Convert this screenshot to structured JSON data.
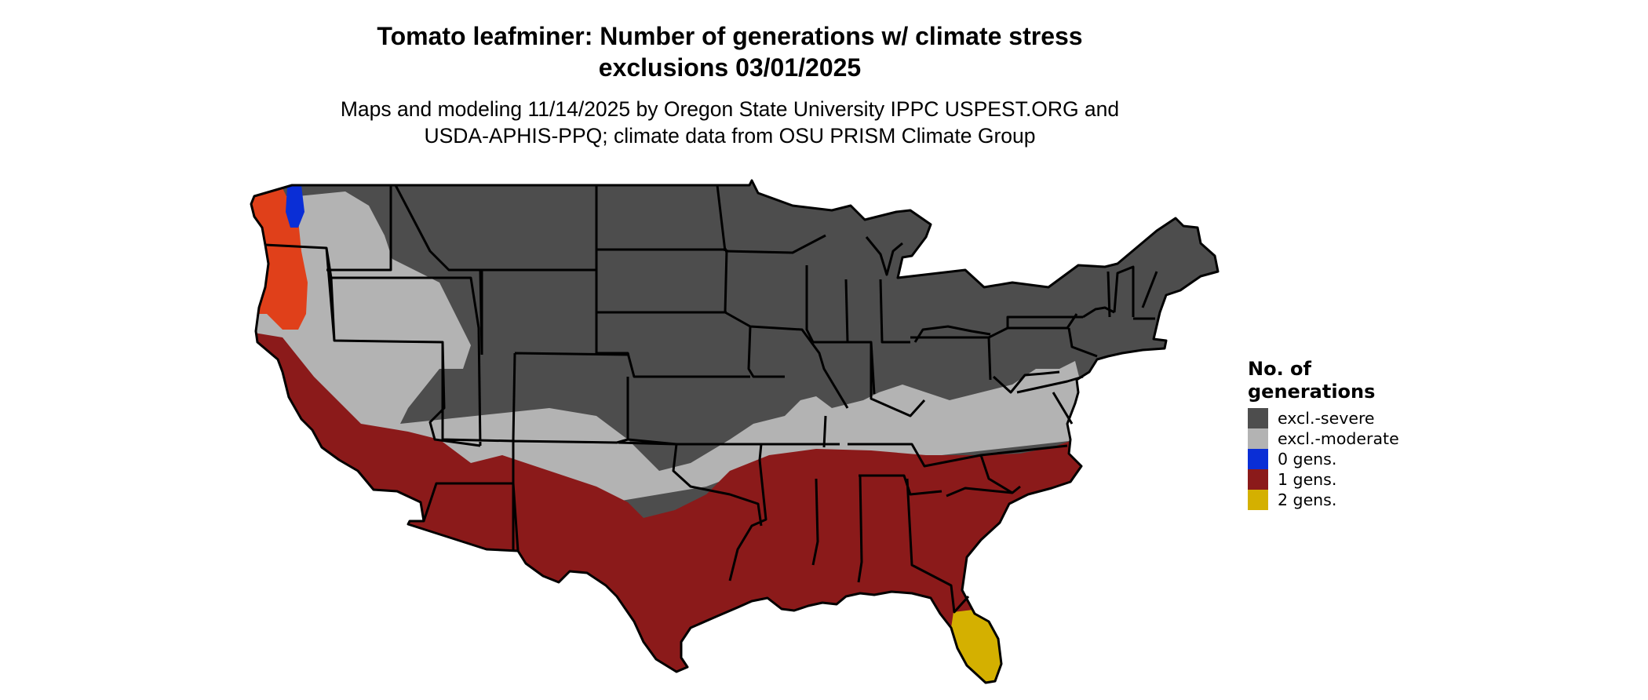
{
  "title_line1": "Tomato leafminer: Number of generations w/ climate stress",
  "title_line2": "exclusions 03/01/2025",
  "subtitle_line1": "Maps and modeling 11/14/2025 by Oregon State University IPPC USPEST.ORG and",
  "subtitle_line2": "USDA-APHIS-PPQ; climate data from OSU PRISM Climate Group",
  "legend": {
    "title_line1": "No. of",
    "title_line2": "generations",
    "items": [
      {
        "label": "excl.-severe",
        "color": "#4d4d4d"
      },
      {
        "label": "excl.-moderate",
        "color": "#b3b3b3"
      },
      {
        "label": "0 gens.",
        "color": "#0a2ed6"
      },
      {
        "label": "1 gens.",
        "color": "#8b1a1a"
      },
      {
        "label": "2 gens.",
        "color": "#d4b000"
      }
    ]
  },
  "colors": {
    "severe": "#4d4d4d",
    "moderate": "#b3b3b3",
    "one_gen": "#8b1a1a",
    "two_gen": "#d4b000",
    "coastal_one_gen": "#e0401a",
    "zero_gen": "#0a2ed6",
    "border": "#000000"
  }
}
